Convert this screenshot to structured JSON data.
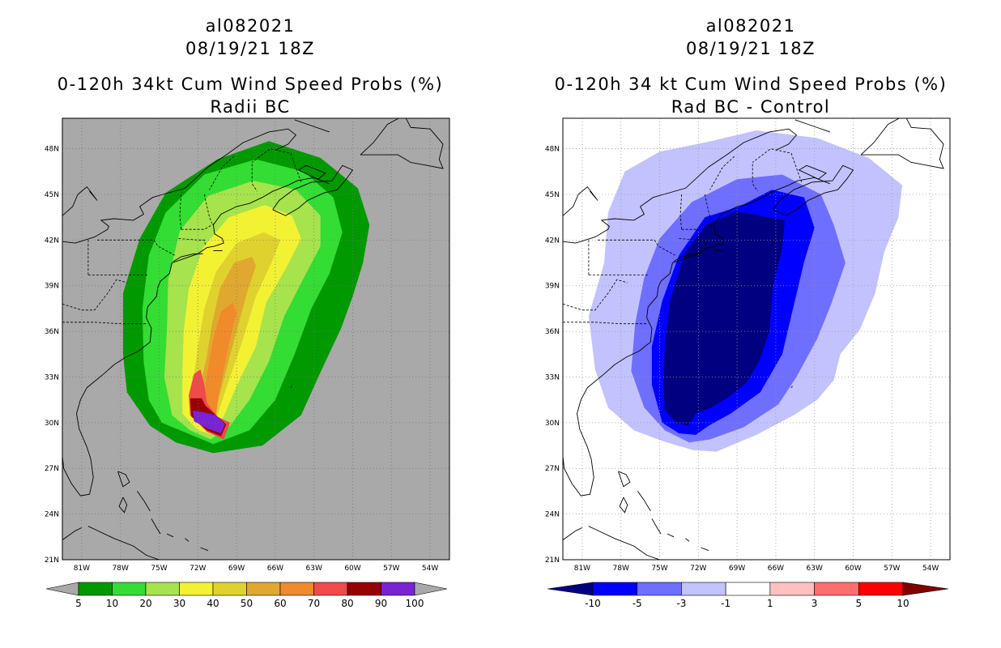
{
  "left": {
    "title_line1": "al082021",
    "title_line2": "08/19/21 18Z",
    "title_line3": "0-120h 34kt Cum Wind Speed Probs (%)",
    "title_line4": "Radii BC",
    "background_color": "#a9a9a9",
    "colorbar": {
      "labels": [
        "5",
        "10",
        "20",
        "30",
        "40",
        "50",
        "60",
        "70",
        "80",
        "90",
        "100"
      ],
      "under_color": "#a9a9a9",
      "over_color": "#a9a9a9",
      "colors": [
        "#009900",
        "#33dd33",
        "#a6e34d",
        "#f2f233",
        "#e0d22e",
        "#e0a82e",
        "#f08a2a",
        "#f04a4a",
        "#990000",
        "#7a22d6"
      ]
    }
  },
  "right": {
    "title_line1": "al082021",
    "title_line2": "08/19/21 18Z",
    "title_line3": "0-120h 34 kt Cum Wind Speed Probs (%)",
    "title_line4": "Rad BC - Control",
    "background_color": "#ffffff",
    "colorbar": {
      "labels": [
        "-10",
        "-5",
        "-3",
        "-1",
        "1",
        "3",
        "5",
        "10"
      ],
      "under_color": "#000080",
      "over_color": "#800000",
      "colors": [
        "#0000ff",
        "#6e6eff",
        "#c2c2ff",
        "#ffffff",
        "#ffc0c0",
        "#ff6e6e",
        "#ff0000"
      ]
    }
  },
  "chart_data": [
    {
      "type": "heatmap",
      "title": "0-120h 34kt Cum Wind Speed Probs (%) — Radii BC",
      "units": "%",
      "x_ticks": [
        "81W",
        "78W",
        "75W",
        "72W",
        "69W",
        "66W",
        "63W",
        "60W",
        "57W",
        "54W"
      ],
      "y_ticks": [
        "48N",
        "45N",
        "42N",
        "39N",
        "36N",
        "33N",
        "30N",
        "27N",
        "24N",
        "21N"
      ],
      "xlim": [
        -82.5,
        -52.5
      ],
      "ylim": [
        21,
        50
      ],
      "contour_levels": [
        5,
        10,
        20,
        30,
        40,
        50,
        60,
        70,
        80,
        90,
        100
      ],
      "contours": [
        {
          "level": 5,
          "points": [
            [
              -75.7,
              29.8
            ],
            [
              -73.7,
              28.7
            ],
            [
              -70.8,
              28
            ],
            [
              -67,
              28.5
            ],
            [
              -64,
              30.5
            ],
            [
              -62.4,
              33.5
            ],
            [
              -60.9,
              36.2
            ],
            [
              -60,
              38.3
            ],
            [
              -59.2,
              40.5
            ],
            [
              -58.7,
              43
            ],
            [
              -59.6,
              45.4
            ],
            [
              -62.5,
              47.4
            ],
            [
              -66.5,
              48.5
            ],
            [
              -70.5,
              47.3
            ],
            [
              -74.5,
              45.1
            ],
            [
              -76.5,
              42.1
            ],
            [
              -77.8,
              38.5
            ],
            [
              -77.8,
              34.5
            ],
            [
              -77.5,
              32
            ]
          ]
        },
        {
          "level": 10,
          "points": [
            [
              -74.8,
              30
            ],
            [
              -72.8,
              29.3
            ],
            [
              -70.8,
              28.6
            ],
            [
              -68,
              29.5
            ],
            [
              -66,
              31.5
            ],
            [
              -64.5,
              34.5
            ],
            [
              -63.2,
              37.5
            ],
            [
              -61.8,
              39.8
            ],
            [
              -60.8,
              42.5
            ],
            [
              -61.5,
              44.8
            ],
            [
              -63.8,
              46.5
            ],
            [
              -67.5,
              47.3
            ],
            [
              -71.5,
              46.3
            ],
            [
              -74.5,
              43.8
            ],
            [
              -75.8,
              41
            ],
            [
              -76.3,
              37.5
            ],
            [
              -76.2,
              34
            ],
            [
              -75.8,
              31.5
            ]
          ]
        },
        {
          "level": 20,
          "points": [
            [
              -74,
              30.5
            ],
            [
              -72.6,
              29.5
            ],
            [
              -71,
              28.9
            ],
            [
              -69.5,
              29.8
            ],
            [
              -68,
              31.5
            ],
            [
              -66.5,
              34
            ],
            [
              -65.3,
              37
            ],
            [
              -63.8,
              39.5
            ],
            [
              -62.5,
              41.6
            ],
            [
              -62.5,
              43.6
            ],
            [
              -64.4,
              45.3
            ],
            [
              -67.7,
              45.9
            ],
            [
              -71.2,
              44.9
            ],
            [
              -73.4,
              42.6
            ],
            [
              -74.3,
              39.4
            ],
            [
              -74.4,
              36.1
            ],
            [
              -74.6,
              33
            ]
          ]
        },
        {
          "level": 30,
          "points": [
            [
              -73.2,
              30.6
            ],
            [
              -72,
              29.5
            ],
            [
              -70.8,
              29.2
            ],
            [
              -70,
              30.4
            ],
            [
              -69,
              32.4
            ],
            [
              -67.5,
              35
            ],
            [
              -66.7,
              37.9
            ],
            [
              -65.2,
              40.1
            ],
            [
              -64,
              42.1
            ],
            [
              -64.7,
              43.6
            ],
            [
              -66.8,
              44.3
            ],
            [
              -69.6,
              43.5
            ],
            [
              -71.6,
              41.5
            ],
            [
              -72.7,
              38.8
            ],
            [
              -73.1,
              36
            ],
            [
              -73.2,
              33.4
            ]
          ]
        },
        {
          "level": 40,
          "points": [
            [
              -72.6,
              31.1
            ],
            [
              -71.7,
              29.8
            ],
            [
              -70.7,
              29.6
            ],
            [
              -70.3,
              31
            ],
            [
              -69.5,
              33
            ],
            [
              -68.5,
              35.5
            ],
            [
              -67.5,
              38.3
            ],
            [
              -66.3,
              40.5
            ],
            [
              -65.6,
              42
            ],
            [
              -66.9,
              42.5
            ],
            [
              -69,
              41.8
            ],
            [
              -70.6,
              39.9
            ],
            [
              -71.5,
              37.5
            ],
            [
              -72,
              35
            ],
            [
              -72.3,
              33
            ]
          ]
        },
        {
          "level": 50,
          "points": [
            [
              -72.1,
              31.2
            ],
            [
              -71.5,
              30
            ],
            [
              -70.7,
              29.8
            ],
            [
              -70.5,
              31.2
            ],
            [
              -69.8,
              33.5
            ],
            [
              -69,
              36
            ],
            [
              -68.2,
              38.5
            ],
            [
              -67.5,
              40.3
            ],
            [
              -67.8,
              40.9
            ],
            [
              -69.2,
              40.5
            ],
            [
              -70.3,
              38.8
            ],
            [
              -70.9,
              36.5
            ],
            [
              -71.3,
              34.4
            ],
            [
              -71.8,
              32.5
            ]
          ]
        },
        {
          "level": 60,
          "points": [
            [
              -71.6,
              31.5
            ],
            [
              -71,
              30.5
            ],
            [
              -70.6,
              30.4
            ],
            [
              -70.4,
              31.8
            ],
            [
              -70,
              33.5
            ],
            [
              -69.5,
              35.5
            ],
            [
              -69,
              37.2
            ],
            [
              -69.3,
              37.9
            ],
            [
              -70.2,
              37.3
            ],
            [
              -70.8,
              35.5
            ],
            [
              -71.2,
              33.6
            ]
          ]
        },
        {
          "level": 70,
          "points": [
            [
              -72.7,
              31.8
            ],
            [
              -72.6,
              30.5
            ],
            [
              -71.3,
              29.4
            ],
            [
              -70,
              28.9
            ],
            [
              -69.5,
              30
            ],
            [
              -70.5,
              30.4
            ],
            [
              -71.3,
              31.3
            ],
            [
              -71.5,
              32.5
            ],
            [
              -71.8,
              33.5
            ],
            [
              -72.3,
              33.2
            ]
          ]
        },
        {
          "level": 80,
          "points": [
            [
              -72.6,
              31.6
            ],
            [
              -72.5,
              30.4
            ],
            [
              -71.3,
              29.5
            ],
            [
              -70.2,
              29.1
            ],
            [
              -69.8,
              29.9
            ],
            [
              -70.6,
              30.5
            ],
            [
              -71.4,
              31.1
            ],
            [
              -71.7,
              31.6
            ]
          ]
        },
        {
          "level": 90,
          "points": [
            [
              -72.4,
              30.8
            ],
            [
              -72.3,
              30.1
            ],
            [
              -71.2,
              29.6
            ],
            [
              -70.2,
              29.3
            ],
            [
              -69.9,
              29.9
            ],
            [
              -70.6,
              30.5
            ],
            [
              -71.6,
              30.7
            ]
          ]
        }
      ]
    },
    {
      "type": "heatmap",
      "title": "0-120h 34 kt Cum Wind Speed Probs (%) — Rad BC - Control",
      "units": "%",
      "x_ticks": [
        "81W",
        "78W",
        "75W",
        "72W",
        "69W",
        "66W",
        "63W",
        "60W",
        "57W",
        "54W"
      ],
      "y_ticks": [
        "48N",
        "45N",
        "42N",
        "39N",
        "36N",
        "33N",
        "30N",
        "27N",
        "24N",
        "21N"
      ],
      "xlim": [
        -82.5,
        -52.5
      ],
      "ylim": [
        21,
        50
      ],
      "contour_levels": [
        -10,
        -5,
        -3,
        -1,
        1,
        3,
        5,
        10
      ],
      "contours": [
        {
          "level": -1,
          "points": [
            [
              -74.8,
              28.8
            ],
            [
              -72.4,
              28.2
            ],
            [
              -70.6,
              28.1
            ],
            [
              -67.5,
              29.2
            ],
            [
              -64.6,
              30.5
            ],
            [
              -62.8,
              31.5
            ],
            [
              -61.5,
              32.8
            ],
            [
              -61,
              34.5
            ],
            [
              -59.5,
              36.1
            ],
            [
              -58.3,
              38.5
            ],
            [
              -57.6,
              41.2
            ],
            [
              -56.5,
              43.5
            ],
            [
              -56.2,
              45.6
            ],
            [
              -58.8,
              47.4
            ],
            [
              -62.8,
              48.7
            ],
            [
              -67.5,
              49.2
            ],
            [
              -71,
              48.5
            ],
            [
              -75,
              47.8
            ],
            [
              -77.7,
              46.5
            ],
            [
              -79,
              43.8
            ],
            [
              -79.3,
              40.5
            ],
            [
              -80.5,
              37
            ],
            [
              -80,
              33.5
            ],
            [
              -79,
              31
            ],
            [
              -77,
              29.5
            ]
          ]
        },
        {
          "level": -3,
          "points": [
            [
              -74.6,
              29.5
            ],
            [
              -72.7,
              28.7
            ],
            [
              -71.1,
              28.9
            ],
            [
              -68.5,
              29.7
            ],
            [
              -65.8,
              31.2
            ],
            [
              -64.4,
              33
            ],
            [
              -62.8,
              35.5
            ],
            [
              -61.7,
              37.8
            ],
            [
              -60.6,
              40.5
            ],
            [
              -61.5,
              43
            ],
            [
              -62.5,
              45
            ],
            [
              -65.5,
              46.3
            ],
            [
              -69,
              46
            ],
            [
              -72.5,
              44.5
            ],
            [
              -75,
              42.1
            ],
            [
              -76.2,
              39.5
            ],
            [
              -76.9,
              36.5
            ],
            [
              -77.2,
              33.4
            ],
            [
              -76.2,
              31
            ]
          ]
        },
        {
          "level": -5,
          "points": [
            [
              -74.8,
              30
            ],
            [
              -73.5,
              29.3
            ],
            [
              -72.2,
              29.2
            ],
            [
              -71.2,
              29.8
            ],
            [
              -69.5,
              30.6
            ],
            [
              -67.2,
              32
            ],
            [
              -65.5,
              34.5
            ],
            [
              -64.8,
              37
            ],
            [
              -63.8,
              40.6
            ],
            [
              -63,
              42.8
            ],
            [
              -63.8,
              44.8
            ],
            [
              -66.3,
              45.3
            ],
            [
              -68.8,
              44.2
            ],
            [
              -71.5,
              43.5
            ],
            [
              -73.5,
              41
            ],
            [
              -74.8,
              38
            ],
            [
              -75.6,
              35
            ],
            [
              -75.6,
              32.5
            ]
          ]
        },
        {
          "level": -10,
          "points": [
            [
              -74.6,
              30.8
            ],
            [
              -73.7,
              30
            ],
            [
              -72.8,
              29.8
            ],
            [
              -72.2,
              30.6
            ],
            [
              -71,
              31
            ],
            [
              -69.8,
              31.6
            ],
            [
              -68.3,
              32.6
            ],
            [
              -67.3,
              34
            ],
            [
              -66.5,
              36
            ],
            [
              -66.2,
              39
            ],
            [
              -65.5,
              41.5
            ],
            [
              -65.3,
              43.3
            ],
            [
              -66.6,
              43.5
            ],
            [
              -69,
              43.9
            ],
            [
              -71.4,
              43
            ],
            [
              -73,
              41.2
            ],
            [
              -74.2,
              38
            ],
            [
              -74.6,
              35
            ],
            [
              -74.7,
              32.6
            ]
          ]
        }
      ]
    }
  ]
}
